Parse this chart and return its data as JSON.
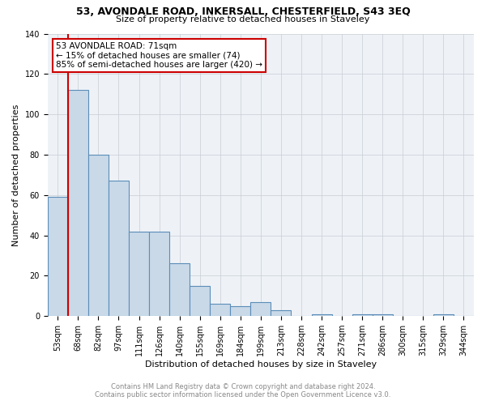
{
  "title": "53, AVONDALE ROAD, INKERSALL, CHESTERFIELD, S43 3EQ",
  "subtitle": "Size of property relative to detached houses in Staveley",
  "xlabel": "Distribution of detached houses by size in Staveley",
  "ylabel": "Number of detached properties",
  "bin_labels": [
    "53sqm",
    "68sqm",
    "82sqm",
    "97sqm",
    "111sqm",
    "126sqm",
    "140sqm",
    "155sqm",
    "169sqm",
    "184sqm",
    "199sqm",
    "213sqm",
    "228sqm",
    "242sqm",
    "257sqm",
    "271sqm",
    "286sqm",
    "300sqm",
    "315sqm",
    "329sqm",
    "344sqm"
  ],
  "bar_heights": [
    59,
    112,
    80,
    67,
    42,
    42,
    26,
    15,
    6,
    5,
    7,
    3,
    0,
    1,
    0,
    1,
    1,
    0,
    0,
    1,
    0
  ],
  "bar_color": "#c9d9e8",
  "bar_edge_color": "#5b8db8",
  "marker_color": "#cc0000",
  "annotation_line1": "53 AVONDALE ROAD: 71sqm",
  "annotation_line2": "← 15% of detached houses are smaller (74)",
  "annotation_line3": "85% of semi-detached houses are larger (420) →",
  "annotation_box_color": "#ffffff",
  "annotation_box_edge": "#cc0000",
  "ylim": [
    0,
    140
  ],
  "yticks": [
    0,
    20,
    40,
    60,
    80,
    100,
    120,
    140
  ],
  "footnote1": "Contains HM Land Registry data © Crown copyright and database right 2024.",
  "footnote2": "Contains public sector information licensed under the Open Government Licence v3.0.",
  "bg_color": "#eef2f7",
  "grid_color": "#c8cdd4",
  "title_fontsize": 9,
  "subtitle_fontsize": 8,
  "ylabel_fontsize": 8,
  "xlabel_fontsize": 8,
  "tick_fontsize": 7,
  "footnote_fontsize": 6,
  "annot_fontsize": 7.5
}
